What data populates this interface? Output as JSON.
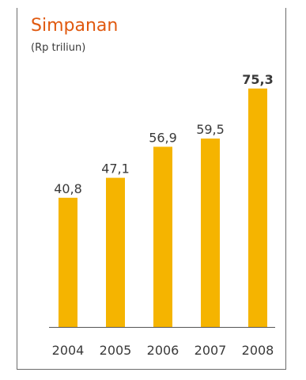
{
  "colors": {
    "title": "#e0590f",
    "bar": "#f5b400",
    "text": "#3a3a3a",
    "axis": "#555555",
    "border": "#6b6b6b"
  },
  "chart_data": {
    "type": "bar",
    "title": "Simpanan",
    "subtitle": "(Rp triliun)",
    "categories": [
      "2004",
      "2005",
      "2006",
      "2007",
      "2008"
    ],
    "values": [
      40.8,
      47.1,
      56.9,
      59.5,
      75.3
    ],
    "value_labels": [
      "40,8",
      "47,1",
      "56,9",
      "59,5",
      "75,3"
    ],
    "highlight_index": 4,
    "ylim": [
      0,
      80
    ],
    "grid": false,
    "legend": "none"
  }
}
